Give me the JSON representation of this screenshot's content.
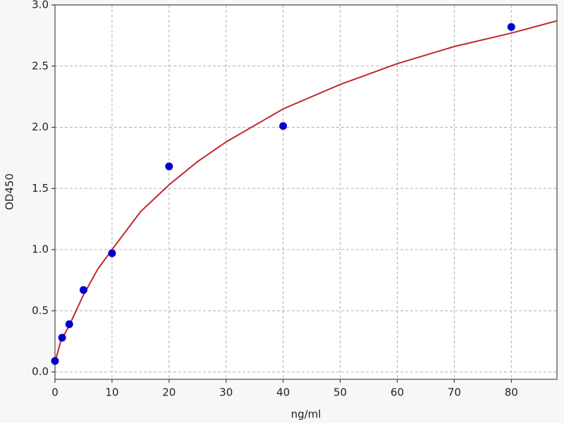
{
  "chart_data": {
    "type": "scatter",
    "x_label": "ng/ml",
    "y_label": "OD450",
    "xlim": [
      0,
      88
    ],
    "ylim": [
      -0.06,
      3.0
    ],
    "xticks": [
      0,
      10,
      20,
      30,
      40,
      50,
      60,
      70,
      80
    ],
    "yticks": [
      {
        "value": 0,
        "label": "0.0"
      },
      {
        "value": 0.5,
        "label": "0.5"
      },
      {
        "value": 1,
        "label": "1.0"
      },
      {
        "value": 1.5,
        "label": "1.5"
      },
      {
        "value": 2,
        "label": "2.0"
      },
      {
        "value": 2.5,
        "label": "2.5"
      },
      {
        "value": 3,
        "label": "3.0"
      }
    ],
    "grid": true,
    "series": [
      {
        "kind": "line",
        "color": "#c0272d",
        "x": [
          0,
          1,
          2.5,
          5,
          7.5,
          10,
          15,
          20,
          25,
          30,
          40,
          50,
          60,
          70,
          80,
          88
        ],
        "values": [
          0.08,
          0.25,
          0.38,
          0.63,
          0.84,
          1.0,
          1.31,
          1.53,
          1.72,
          1.88,
          2.15,
          2.35,
          2.52,
          2.66,
          2.77,
          2.87
        ]
      },
      {
        "kind": "points",
        "color": "#0000cc",
        "x": [
          0,
          1.25,
          2.5,
          5,
          10,
          20,
          40,
          80
        ],
        "values": [
          0.09,
          0.28,
          0.39,
          0.67,
          0.97,
          1.68,
          2.01,
          2.82
        ]
      }
    ]
  }
}
